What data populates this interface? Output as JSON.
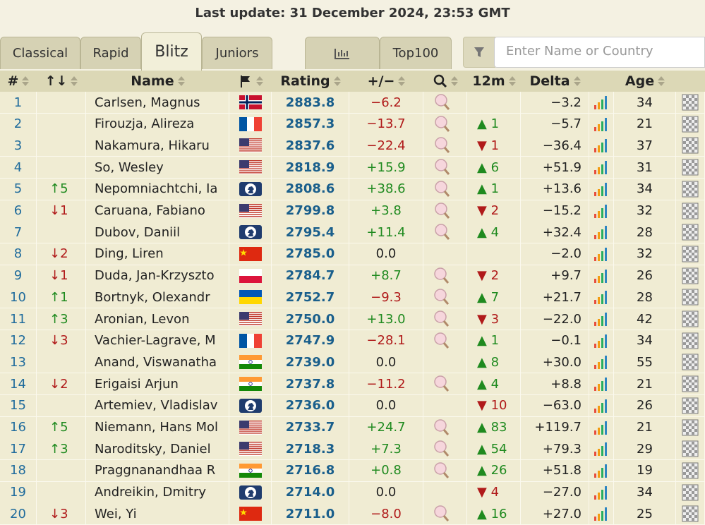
{
  "header": {
    "last_update": "Last update: 31 December 2024, 23:53 GMT"
  },
  "tabs": [
    "Classical",
    "Rapid",
    "Blitz",
    "Juniors",
    "Top100"
  ],
  "search_placeholder": "Enter Name or Country",
  "table": {
    "columns": [
      "#",
      "↑↓",
      "Name",
      "Rating",
      "+/−",
      "12m",
      "Delta",
      "Age"
    ],
    "rows": [
      [
        "1",
        null,
        "Carlsen, Magnus",
        "2883.8",
        "−6.2",
        null,
        "−3.2",
        "34"
      ],
      [
        "2",
        null,
        "Firouzja, Alireza",
        "2857.3",
        "−13.7",
        "▲ 1",
        "−5.7",
        "21"
      ],
      [
        "3",
        null,
        "Nakamura, Hikaru",
        "2837.6",
        "−22.4",
        "▼ 1",
        "−36.4",
        "37"
      ],
      [
        "4",
        null,
        "So, Wesley",
        "2818.9",
        "+15.9",
        "▲ 6",
        "+51.9",
        "31"
      ],
      [
        "5",
        "↑5",
        "Nepomniachtchi, Ia",
        "2808.6",
        "+38.6",
        "▲ 1",
        "+13.6",
        "34"
      ],
      [
        "6",
        "↓1",
        "Caruana, Fabiano",
        "2799.8",
        "+3.8",
        "▼ 2",
        "−15.2",
        "32"
      ],
      [
        "7",
        null,
        "Dubov, Daniil",
        "2795.4",
        "+11.4",
        "▲ 4",
        "+32.4",
        "28"
      ],
      [
        "8",
        "↓2",
        "Ding, Liren",
        "2785.0",
        "0.0",
        null,
        "−2.0",
        "32"
      ],
      [
        "9",
        "↓1",
        "Duda, Jan-Krzyszto",
        "2784.7",
        "+8.7",
        "▼ 2",
        "+9.7",
        "26"
      ],
      [
        "10",
        "↑1",
        "Bortnyk, Olexandr",
        "2752.7",
        "−9.3",
        "▲ 7",
        "+21.7",
        "28"
      ],
      [
        "11",
        "↑3",
        "Aronian, Levon",
        "2750.0",
        "+13.0",
        "▼ 3",
        "−22.0",
        "42"
      ],
      [
        "12",
        "↓3",
        "Vachier-Lagrave, M",
        "2747.9",
        "−28.1",
        "▲ 1",
        "−0.1",
        "34"
      ],
      [
        "13",
        null,
        "Anand, Viswanatha",
        "2739.0",
        "0.0",
        "▲ 8",
        "+30.0",
        "55"
      ],
      [
        "14",
        "↓2",
        "Erigaisi Arjun",
        "2737.8",
        "−11.2",
        "▲ 4",
        "+8.8",
        "21"
      ],
      [
        "15",
        null,
        "Artemiev, Vladislav",
        "2736.0",
        "0.0",
        "▼ 10",
        "−63.0",
        "26"
      ],
      [
        "16",
        "↑5",
        "Niemann, Hans Mol",
        "2733.7",
        "+24.7",
        "▲ 83",
        "+119.7",
        "21"
      ],
      [
        "17",
        "↑3",
        "Naroditsky, Daniel",
        "2718.3",
        "+7.3",
        "▲ 54",
        "+79.3",
        "29"
      ],
      [
        "18",
        null,
        "Praggnanandhaa R",
        "2716.8",
        "+0.8",
        "▲ 26",
        "+51.8",
        "19"
      ],
      [
        "19",
        null,
        "Andreikin, Dmitry",
        "2714.0",
        "0.0",
        "▼ 4",
        "−27.0",
        "34"
      ],
      [
        "20",
        "↓3",
        "Wei, Yi",
        "2711.0",
        "−8.0",
        "▲ 16",
        "+27.0",
        "25"
      ]
    ]
  }
}
